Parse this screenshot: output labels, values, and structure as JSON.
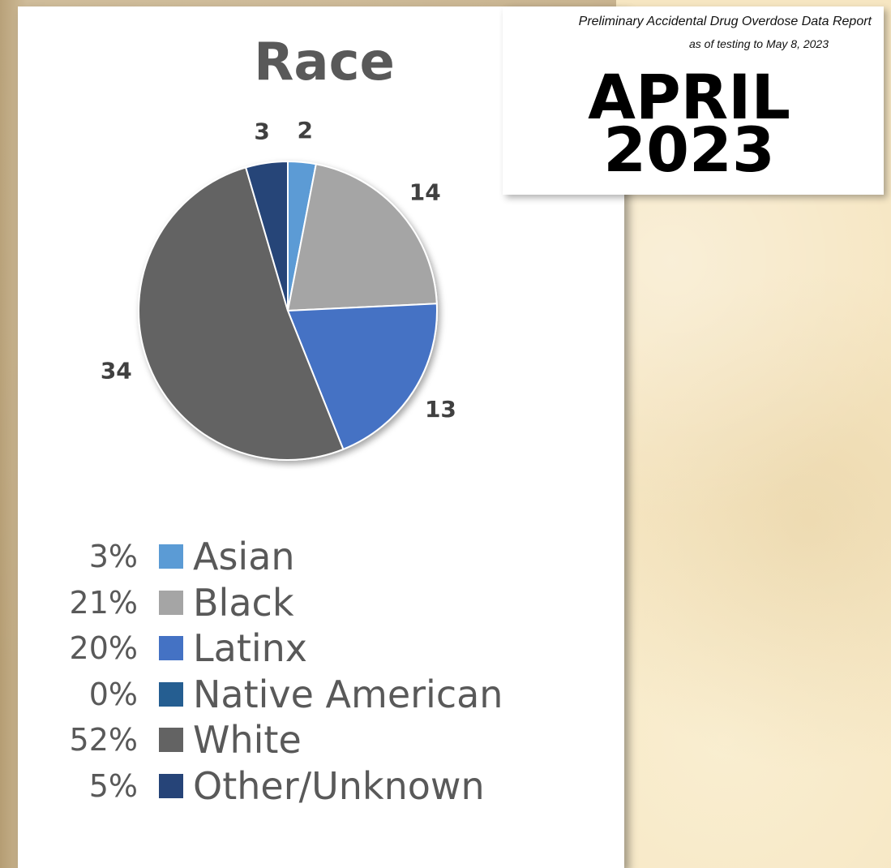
{
  "report": {
    "title": "Preliminary Accidental Drug Overdose Data Report",
    "subtitle": "as of testing to May 8, 2023",
    "month": "APRIL",
    "year": "2023"
  },
  "chart_data": {
    "type": "pie",
    "title": "Race",
    "categories": [
      "Asian",
      "Black",
      "Latinx",
      "Native American",
      "White",
      "Other/Unknown"
    ],
    "values": [
      2,
      14,
      13,
      0,
      34,
      3
    ],
    "percent_labels": [
      "3%",
      "21%",
      "20%",
      "0%",
      "52%",
      "5%"
    ],
    "data_labels": [
      "2",
      "14",
      "13",
      "",
      "34",
      "3"
    ],
    "colors": [
      "#5b9bd5",
      "#a5a5a5",
      "#4472c4",
      "#255e91",
      "#636363",
      "#264478"
    ],
    "legend_position": "bottom"
  }
}
